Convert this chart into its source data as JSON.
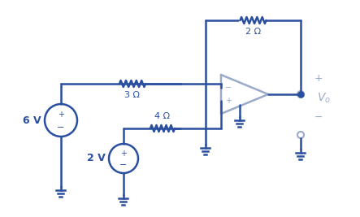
{
  "circuit_color": "#2B4FA0",
  "bg_color": "#ffffff",
  "line_width": 1.8,
  "opamp_color": "#99AACB",
  "text_color": "#2B4FA0",
  "vo_text_color": "#99AACB",
  "v1_label": "6 V",
  "v2_label": "2 V",
  "r1_label": "3 Ω",
  "r2_label": "4 Ω",
  "r3_label": "2 Ω",
  "figw": 4.43,
  "figh": 2.67,
  "dpi": 100
}
